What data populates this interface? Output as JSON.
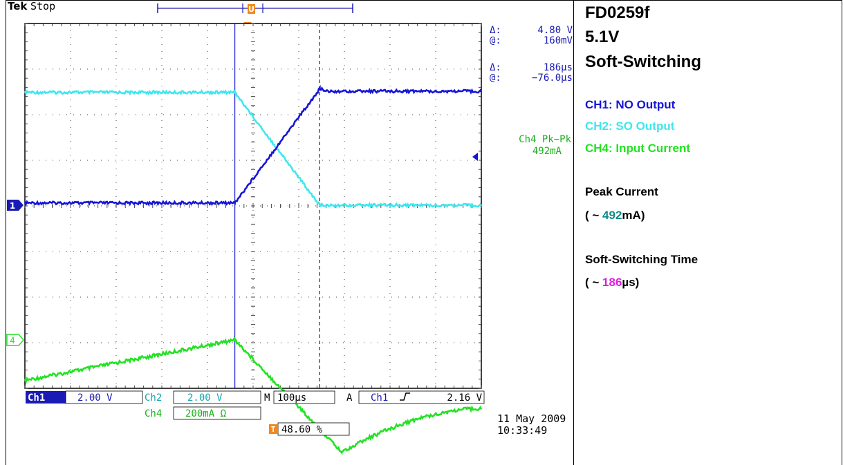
{
  "brand": "Tek",
  "acq_state": "Stop",
  "trigger_marker": "T",
  "ref_marker": "U",
  "cursor_readout": {
    "delta_v_symbol": "Δ:",
    "delta_v": "4.80 V",
    "at_v_symbol": "@:",
    "at_v": "160mV",
    "delta_t_symbol": "Δ:",
    "delta_t": "186µs",
    "at_t_symbol": "@:",
    "at_t": "−76.0µs"
  },
  "measurement": {
    "label": "Ch4 Pk−Pk",
    "value": "492mA"
  },
  "channel_markers": {
    "ch1": "1",
    "ch4": "4"
  },
  "status_bar": {
    "ch1_label": "Ch1",
    "ch1_scale": "2.00 V",
    "ch2_label": "Ch2",
    "ch2_scale": "2.00 V",
    "ch4_label": "Ch4",
    "ch4_scale": "200mA Ω",
    "timebase_label": "M",
    "timebase": "100µs",
    "trigger_label": "A",
    "trigger_src": "Ch1",
    "trigger_level": "2.16 V",
    "trigger_pos": "48.60 %"
  },
  "date": "11 May 2009",
  "time": "10:33:49",
  "side_panel": {
    "model": "FD0259f",
    "voltage": "5.1V",
    "mode": "Soft-Switching",
    "legend": [
      {
        "text": "CH1: NO Output",
        "color": "#1515d8"
      },
      {
        "text": "CH2: SO Output",
        "color": "#3fe6ee"
      },
      {
        "text": "CH4: Input Current",
        "color": "#22e222"
      }
    ],
    "peak_label": "Peak Current",
    "peak_prefix": "( ~ ",
    "peak_value": "492",
    "peak_suffix": "mA)",
    "sw_label": "Soft-Switching Time",
    "sw_prefix": "( ~ ",
    "sw_value": "186",
    "sw_suffix": "µs)"
  },
  "colors": {
    "ch1": "#1515d8",
    "ch2": "#3fe6ee",
    "ch4": "#22e222",
    "readout": "#1a1ab4",
    "measure": "#18b018",
    "trigger": "#f08a1c",
    "peak": "#138a8a",
    "sw": "#e01ce0"
  },
  "chart_data": {
    "type": "line",
    "x_unit": "µs",
    "xlim": [
      -500,
      500
    ],
    "divisions": {
      "x": 10,
      "y": 8
    },
    "series": [
      {
        "name": "CH1: NO Output",
        "channel": "Ch1",
        "unit": "V",
        "x": [
          -500,
          -40,
          146,
          500
        ],
        "y": [
          0.1,
          0.1,
          5.1,
          5.0
        ]
      },
      {
        "name": "CH2: SO Output",
        "channel": "Ch2",
        "unit": "V",
        "x": [
          -500,
          -40,
          146,
          500
        ],
        "y": [
          4.95,
          4.95,
          0.0,
          0.0
        ]
      },
      {
        "name": "CH4: Input Current",
        "channel": "Ch4",
        "unit": "mA",
        "x": [
          -500,
          -40,
          194,
          500
        ],
        "y": [
          -178,
          0,
          -492,
          -300
        ]
      }
    ],
    "cursors": {
      "x": [
        -40,
        146
      ]
    }
  }
}
